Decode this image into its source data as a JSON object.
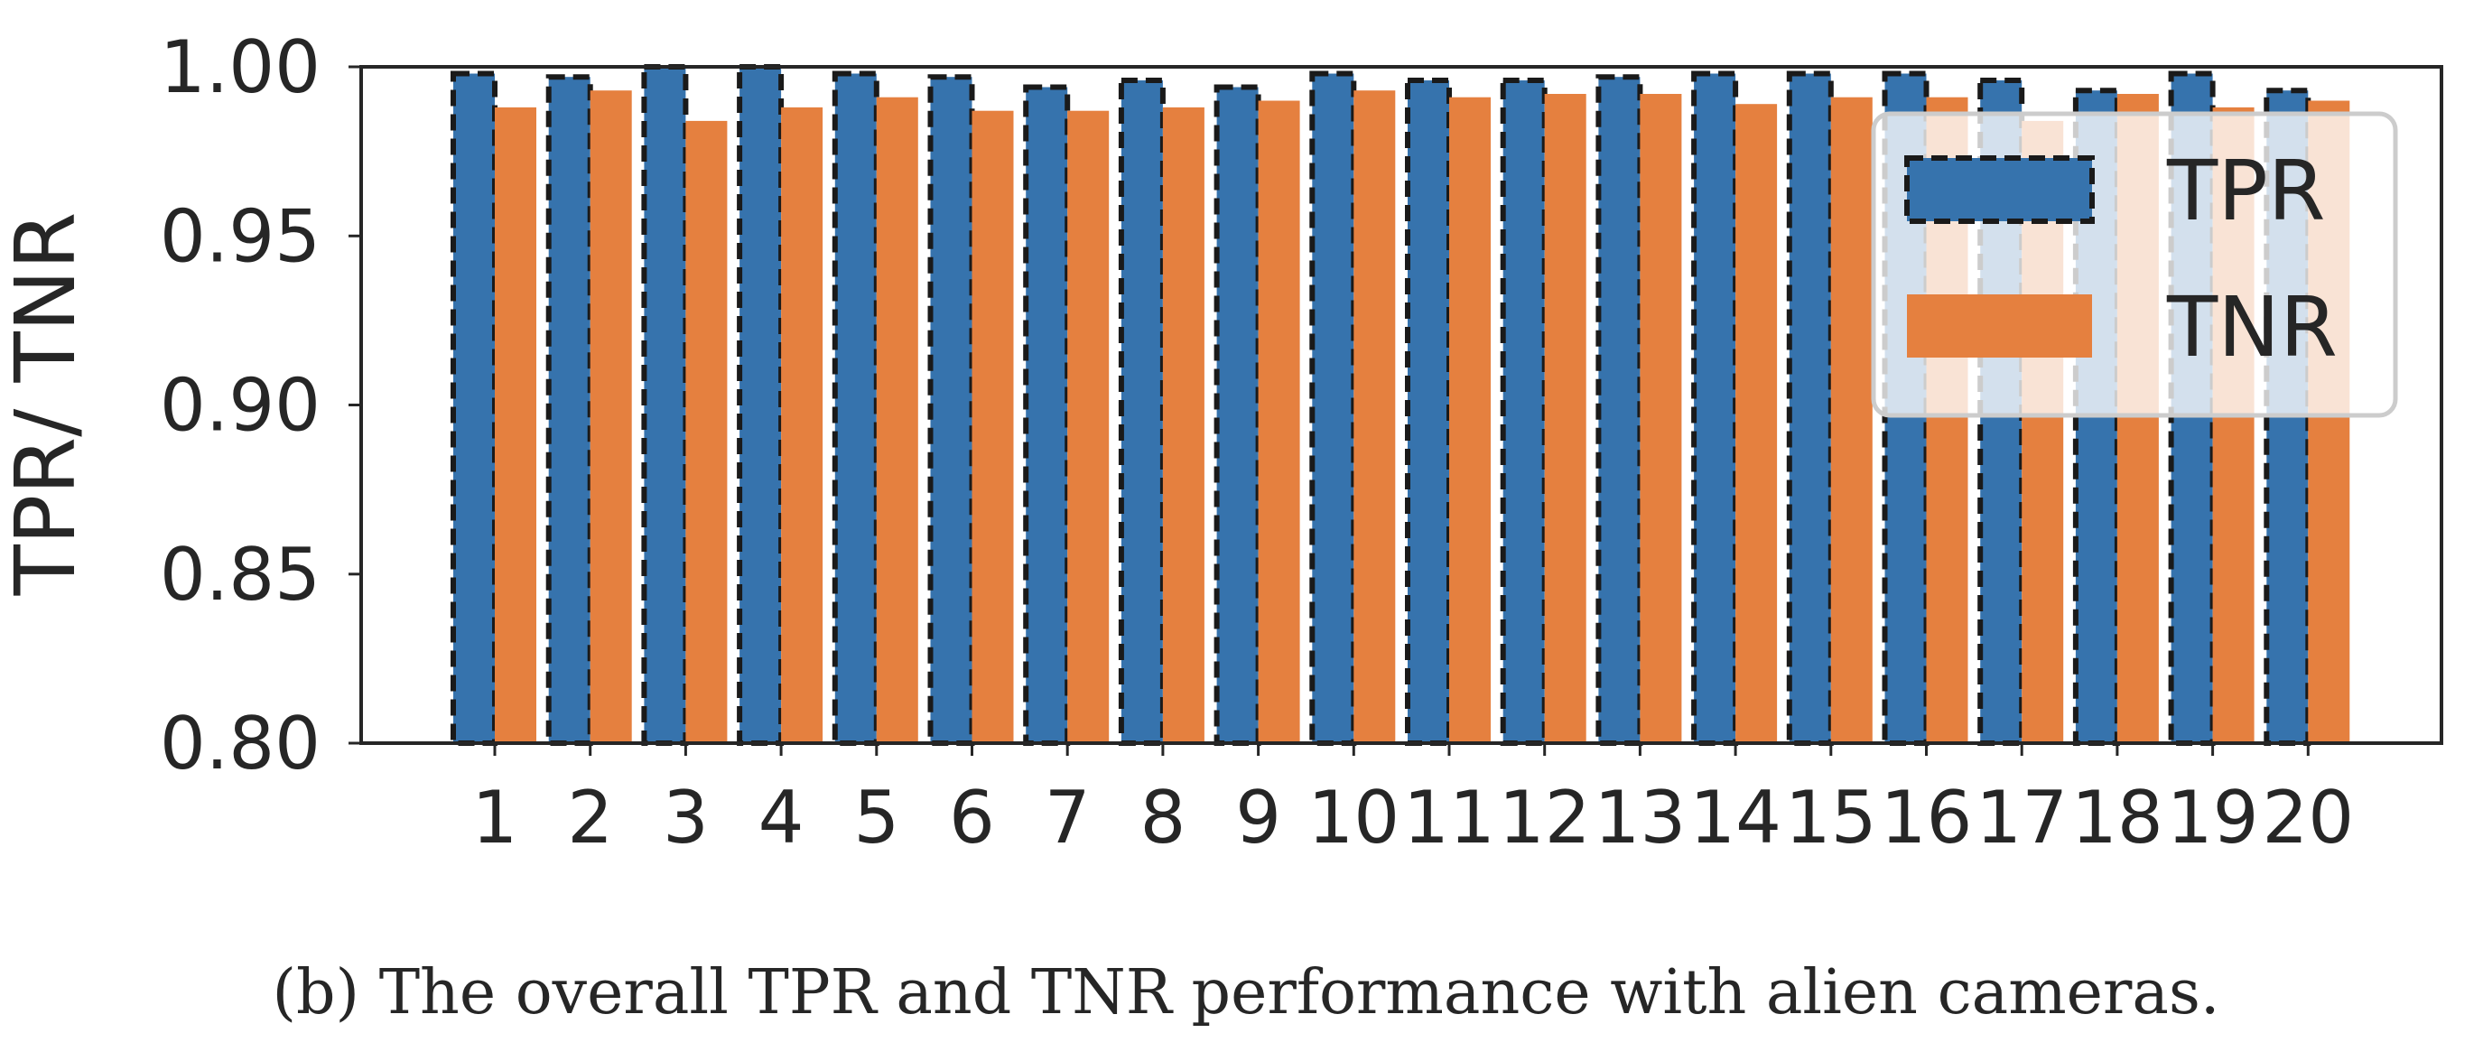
{
  "chart_data": {
    "type": "bar",
    "categories": [
      "1",
      "2",
      "3",
      "4",
      "5",
      "6",
      "7",
      "8",
      "9",
      "10",
      "11",
      "12",
      "13",
      "14",
      "15",
      "16",
      "17",
      "18",
      "19",
      "20"
    ],
    "series": [
      {
        "name": "TPR",
        "color": "#3673ad",
        "edge": "dashed-black",
        "values": [
          0.998,
          0.997,
          1.0,
          1.0,
          0.998,
          0.997,
          0.994,
          0.996,
          0.994,
          0.998,
          0.996,
          0.996,
          0.997,
          0.998,
          0.998,
          0.998,
          0.996,
          0.993,
          0.998,
          0.993
        ]
      },
      {
        "name": "TNR",
        "color": "#e5803f",
        "values": [
          0.988,
          0.993,
          0.984,
          0.988,
          0.991,
          0.987,
          0.987,
          0.988,
          0.99,
          0.993,
          0.991,
          0.992,
          0.992,
          0.989,
          0.991,
          0.991,
          0.984,
          0.992,
          0.988,
          0.99
        ]
      }
    ],
    "xlabel": "",
    "ylabel": "TPR/ TNR",
    "ylim": [
      0.8,
      1.0
    ],
    "yticks": [
      "0.80",
      "0.85",
      "0.90",
      "0.95",
      "1.00"
    ],
    "grid": false,
    "legend": {
      "placement": "upper-right",
      "entries": [
        "TPR",
        "TNR"
      ]
    }
  },
  "caption": "(b)  The overall TPR and TNR performance with alien cameras."
}
